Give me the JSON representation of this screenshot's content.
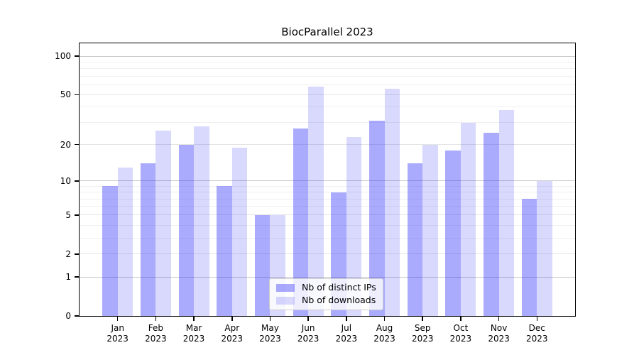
{
  "figure": {
    "title": "BiocParallel 2023",
    "background_color": "#ffffff",
    "text_color": "#000000"
  },
  "chart_data": {
    "type": "bar",
    "title": "BiocParallel 2023",
    "categories": [
      "Jan",
      "Feb",
      "Mar",
      "Apr",
      "May",
      "Jun",
      "Jul",
      "Aug",
      "Sep",
      "Oct",
      "Nov",
      "Dec"
    ],
    "year_label": "2023",
    "series": [
      {
        "name": "Nb of distinct IPs",
        "color": "rgba(45,45,252,0.40)",
        "values": [
          9,
          14,
          20,
          9,
          5,
          27,
          8,
          31,
          14,
          18,
          25,
          7
        ]
      },
      {
        "name": "Nb of downloads",
        "color": "rgba(45,45,252,0.18)",
        "values": [
          13,
          26,
          28,
          19,
          5,
          58,
          23,
          56,
          20,
          30,
          38,
          10
        ]
      }
    ],
    "xlabel": "",
    "ylabel": "",
    "y_scale": "log1p",
    "ylim": [
      0,
      126
    ],
    "y_ticks": [
      0,
      1,
      2,
      5,
      10,
      20,
      50,
      100
    ],
    "y_major_gridlines": [
      1,
      2,
      5,
      10,
      20,
      50,
      100
    ],
    "y_minor_gridlines": [
      3,
      4,
      6,
      7,
      8,
      9,
      30,
      40,
      60,
      70,
      80,
      90
    ],
    "grid": true,
    "gridline_color_power10": "#c9c9c9",
    "gridline_color_major": "#e4e4e4",
    "gridline_color_minor": "#f0f0f0",
    "legend_position": "lower center"
  },
  "legend": {
    "items": [
      {
        "label": "Nb of distinct IPs"
      },
      {
        "label": "Nb of downloads"
      }
    ]
  }
}
